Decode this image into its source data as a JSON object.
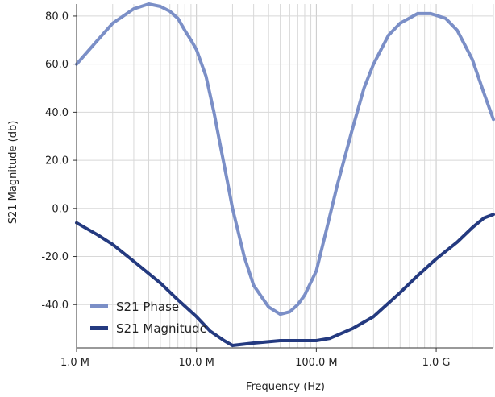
{
  "chart_data": {
    "type": "line",
    "xlabel": "Frequency (Hz)",
    "ylabel": "S21 Magnitude (db)",
    "x_scale": "log",
    "xlim": [
      1000000,
      3000000000
    ],
    "ylim": [
      -58,
      85
    ],
    "x_ticks": [
      {
        "value": 1000000,
        "label": "1.0 M"
      },
      {
        "value": 10000000,
        "label": "10.0 M"
      },
      {
        "value": 100000000,
        "label": "100.0 M"
      },
      {
        "value": 1000000000,
        "label": "1.0 G"
      }
    ],
    "y_ticks": [
      {
        "value": 80,
        "label": "80.0"
      },
      {
        "value": 60,
        "label": "60.0"
      },
      {
        "value": 40,
        "label": "40.0"
      },
      {
        "value": 20,
        "label": "20.0"
      },
      {
        "value": 0,
        "label": "0.0"
      },
      {
        "value": -20,
        "label": "-20.0"
      },
      {
        "value": -40,
        "label": "-40.0"
      }
    ],
    "grid": true,
    "legend_position": "bottom-left",
    "series": [
      {
        "name": "S21 Phase",
        "color": "#7b8fc7",
        "points": [
          [
            1000000,
            60
          ],
          [
            1500000,
            70
          ],
          [
            2000000,
            77
          ],
          [
            3000000,
            83
          ],
          [
            4000000,
            85
          ],
          [
            5000000,
            84
          ],
          [
            6000000,
            82
          ],
          [
            7000000,
            79
          ],
          [
            8000000,
            74
          ],
          [
            9000000,
            70
          ],
          [
            10000000,
            66
          ],
          [
            12000000,
            55
          ],
          [
            14000000,
            40
          ],
          [
            16000000,
            25
          ],
          [
            18000000,
            12
          ],
          [
            20000000,
            0
          ],
          [
            25000000,
            -20
          ],
          [
            30000000,
            -32
          ],
          [
            40000000,
            -41
          ],
          [
            50000000,
            -44
          ],
          [
            60000000,
            -43
          ],
          [
            70000000,
            -40
          ],
          [
            80000000,
            -36
          ],
          [
            100000000,
            -26
          ],
          [
            120000000,
            -10
          ],
          [
            150000000,
            10
          ],
          [
            200000000,
            33
          ],
          [
            250000000,
            50
          ],
          [
            300000000,
            60
          ],
          [
            400000000,
            72
          ],
          [
            500000000,
            77
          ],
          [
            700000000,
            81
          ],
          [
            900000000,
            81
          ],
          [
            1200000000,
            79
          ],
          [
            1500000000,
            74
          ],
          [
            2000000000,
            62
          ],
          [
            2500000000,
            48
          ],
          [
            3000000000,
            37
          ]
        ]
      },
      {
        "name": "S21 Magnitude",
        "color": "#243a80",
        "points": [
          [
            1000000,
            -6
          ],
          [
            1500000,
            -11
          ],
          [
            2000000,
            -15
          ],
          [
            3000000,
            -22
          ],
          [
            5000000,
            -31
          ],
          [
            7000000,
            -38
          ],
          [
            10000000,
            -45
          ],
          [
            13000000,
            -51
          ],
          [
            17000000,
            -55
          ],
          [
            20000000,
            -57
          ],
          [
            30000000,
            -56
          ],
          [
            50000000,
            -55
          ],
          [
            100000000,
            -55
          ],
          [
            130000000,
            -54
          ],
          [
            200000000,
            -50
          ],
          [
            300000000,
            -45
          ],
          [
            500000000,
            -35
          ],
          [
            700000000,
            -28
          ],
          [
            1000000000,
            -21
          ],
          [
            1500000000,
            -14
          ],
          [
            2000000000,
            -8
          ],
          [
            2500000000,
            -4
          ],
          [
            3000000000,
            -2.5
          ]
        ]
      }
    ]
  }
}
